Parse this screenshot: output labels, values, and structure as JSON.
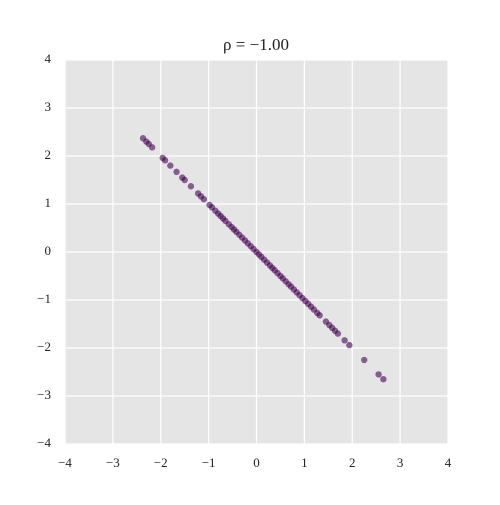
{
  "chart_data": {
    "type": "scatter",
    "title": "ρ = −1.00",
    "series": [
      {
        "color": "#440154",
        "x": [
          -2.37,
          -2.3,
          -2.25,
          -2.18,
          -1.96,
          -1.91,
          -1.8,
          -1.67,
          -1.55,
          -1.5,
          -1.37,
          -1.22,
          -1.16,
          -1.1,
          -0.98,
          -0.93,
          -0.86,
          -0.8,
          -0.75,
          -0.7,
          -0.65,
          -0.58,
          -0.52,
          -0.47,
          -0.42,
          -0.36,
          -0.3,
          -0.24,
          -0.18,
          -0.12,
          -0.06,
          0,
          0.05,
          0.1,
          0.16,
          0.22,
          0.28,
          0.33,
          0.38,
          0.44,
          0.5,
          0.55,
          0.61,
          0.67,
          0.72,
          0.78,
          0.84,
          0.9,
          0.96,
          1.02,
          1.08,
          1.14,
          1.2,
          1.27,
          1.32,
          1.45,
          1.52,
          1.58,
          1.64,
          1.7,
          1.84,
          1.94,
          2.25,
          2.55,
          2.65
        ],
        "values": [
          2.37,
          2.3,
          2.25,
          2.18,
          1.96,
          1.91,
          1.8,
          1.67,
          1.55,
          1.5,
          1.37,
          1.22,
          1.16,
          1.1,
          0.98,
          0.93,
          0.86,
          0.8,
          0.75,
          0.7,
          0.65,
          0.58,
          0.52,
          0.47,
          0.42,
          0.36,
          0.3,
          0.24,
          0.18,
          0.12,
          0.06,
          0,
          -0.05,
          -0.1,
          -0.16,
          -0.22,
          -0.28,
          -0.33,
          -0.38,
          -0.44,
          -0.5,
          -0.55,
          -0.61,
          -0.67,
          -0.72,
          -0.78,
          -0.84,
          -0.9,
          -0.96,
          -1.02,
          -1.08,
          -1.14,
          -1.2,
          -1.27,
          -1.32,
          -1.45,
          -1.52,
          -1.58,
          -1.64,
          -1.7,
          -1.84,
          -1.94,
          -2.25,
          -2.55,
          -2.65
        ]
      }
    ],
    "xlim": [
      -4,
      4
    ],
    "ylim": [
      -4,
      4
    ],
    "xticks": [
      {
        "value": -4,
        "label": "−4"
      },
      {
        "value": -3,
        "label": "−3"
      },
      {
        "value": -2,
        "label": "−2"
      },
      {
        "value": -1,
        "label": "−1"
      },
      0,
      1,
      2,
      3,
      4
    ],
    "yticks": [
      {
        "value": -4,
        "label": "−4"
      },
      {
        "value": -3,
        "label": "−3"
      },
      {
        "value": -2,
        "label": "−2"
      },
      {
        "value": -1,
        "label": "−1"
      },
      0,
      1,
      2,
      3,
      4
    ],
    "grid": true
  }
}
